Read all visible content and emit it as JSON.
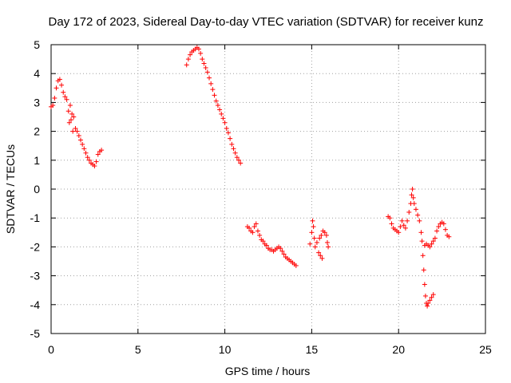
{
  "chart_data": {
    "type": "scatter",
    "title": "Day 172 of 2023, Sidereal Day-to-day VTEC variation (SDTVAR) for receiver kunz",
    "xlabel": "GPS time / hours",
    "ylabel": "SDTVAR / TECUs",
    "xlim": [
      0,
      25
    ],
    "ylim": [
      -5,
      5
    ],
    "xticks": [
      0,
      5,
      10,
      15,
      20,
      25
    ],
    "yticks": [
      -5,
      -4,
      -3,
      -2,
      -1,
      0,
      1,
      2,
      3,
      4,
      5
    ],
    "grid": true,
    "marker": "plus",
    "color": "#ff0000",
    "series": [
      {
        "name": "SDTVAR",
        "points": [
          [
            0.0,
            2.85
          ],
          [
            0.1,
            2.9
          ],
          [
            0.2,
            3.15
          ],
          [
            0.3,
            3.5
          ],
          [
            0.4,
            3.75
          ],
          [
            0.5,
            3.8
          ],
          [
            0.6,
            3.6
          ],
          [
            0.7,
            3.35
          ],
          [
            0.8,
            3.2
          ],
          [
            0.9,
            3.1
          ],
          [
            1.0,
            2.7
          ],
          [
            1.05,
            2.3
          ],
          [
            1.1,
            2.9
          ],
          [
            1.15,
            2.4
          ],
          [
            1.2,
            2.6
          ],
          [
            1.25,
            2.0
          ],
          [
            1.3,
            2.5
          ],
          [
            1.4,
            2.1
          ],
          [
            1.5,
            2.0
          ],
          [
            1.6,
            1.85
          ],
          [
            1.7,
            1.7
          ],
          [
            1.8,
            1.55
          ],
          [
            1.9,
            1.4
          ],
          [
            2.0,
            1.25
          ],
          [
            2.1,
            1.1
          ],
          [
            2.2,
            1.0
          ],
          [
            2.3,
            0.9
          ],
          [
            2.4,
            0.85
          ],
          [
            2.5,
            0.8
          ],
          [
            2.6,
            0.95
          ],
          [
            2.7,
            1.2
          ],
          [
            2.8,
            1.3
          ],
          [
            2.9,
            1.35
          ],
          [
            7.8,
            4.3
          ],
          [
            7.9,
            4.5
          ],
          [
            8.0,
            4.65
          ],
          [
            8.1,
            4.75
          ],
          [
            8.2,
            4.8
          ],
          [
            8.3,
            4.85
          ],
          [
            8.4,
            4.9
          ],
          [
            8.5,
            4.85
          ],
          [
            8.6,
            4.7
          ],
          [
            8.7,
            4.5
          ],
          [
            8.8,
            4.35
          ],
          [
            8.9,
            4.2
          ],
          [
            9.0,
            4.05
          ],
          [
            9.1,
            3.85
          ],
          [
            9.2,
            3.65
          ],
          [
            9.3,
            3.45
          ],
          [
            9.4,
            3.25
          ],
          [
            9.5,
            3.05
          ],
          [
            9.6,
            2.9
          ],
          [
            9.7,
            2.75
          ],
          [
            9.8,
            2.6
          ],
          [
            9.9,
            2.45
          ],
          [
            10.0,
            2.3
          ],
          [
            10.1,
            2.1
          ],
          [
            10.2,
            1.95
          ],
          [
            10.3,
            1.75
          ],
          [
            10.4,
            1.55
          ],
          [
            10.5,
            1.4
          ],
          [
            10.6,
            1.25
          ],
          [
            10.7,
            1.1
          ],
          [
            10.8,
            1.0
          ],
          [
            10.9,
            0.9
          ],
          [
            11.3,
            -1.3
          ],
          [
            11.4,
            -1.35
          ],
          [
            11.5,
            -1.45
          ],
          [
            11.6,
            -1.5
          ],
          [
            11.7,
            -1.3
          ],
          [
            11.8,
            -1.2
          ],
          [
            11.9,
            -1.45
          ],
          [
            12.0,
            -1.6
          ],
          [
            12.1,
            -1.75
          ],
          [
            12.2,
            -1.8
          ],
          [
            12.3,
            -1.9
          ],
          [
            12.4,
            -1.95
          ],
          [
            12.5,
            -2.05
          ],
          [
            12.6,
            -2.1
          ],
          [
            12.7,
            -2.1
          ],
          [
            12.8,
            -2.15
          ],
          [
            12.9,
            -2.1
          ],
          [
            13.0,
            -2.05
          ],
          [
            13.1,
            -2.0
          ],
          [
            13.2,
            -2.05
          ],
          [
            13.3,
            -2.15
          ],
          [
            13.4,
            -2.25
          ],
          [
            13.5,
            -2.35
          ],
          [
            13.6,
            -2.4
          ],
          [
            13.7,
            -2.45
          ],
          [
            13.8,
            -2.5
          ],
          [
            13.9,
            -2.55
          ],
          [
            14.0,
            -2.6
          ],
          [
            14.1,
            -2.65
          ],
          [
            14.9,
            -1.9
          ],
          [
            15.0,
            -1.5
          ],
          [
            15.05,
            -1.1
          ],
          [
            15.1,
            -1.3
          ],
          [
            15.15,
            -1.7
          ],
          [
            15.2,
            -2.0
          ],
          [
            15.3,
            -1.85
          ],
          [
            15.4,
            -2.2
          ],
          [
            15.5,
            -2.3
          ],
          [
            15.6,
            -2.4
          ],
          [
            15.45,
            -1.7
          ],
          [
            15.55,
            -1.6
          ],
          [
            15.65,
            -1.45
          ],
          [
            15.75,
            -1.5
          ],
          [
            15.85,
            -1.6
          ],
          [
            15.9,
            -1.85
          ],
          [
            15.95,
            -2.0
          ],
          [
            19.4,
            -0.95
          ],
          [
            19.5,
            -1.0
          ],
          [
            19.6,
            -1.2
          ],
          [
            19.7,
            -1.35
          ],
          [
            19.8,
            -1.4
          ],
          [
            19.9,
            -1.45
          ],
          [
            20.0,
            -1.5
          ],
          [
            20.1,
            -1.3
          ],
          [
            20.2,
            -1.1
          ],
          [
            20.3,
            -1.25
          ],
          [
            20.4,
            -1.35
          ],
          [
            20.5,
            -1.1
          ],
          [
            20.6,
            -0.8
          ],
          [
            20.7,
            -0.5
          ],
          [
            20.75,
            -0.2
          ],
          [
            20.8,
            0.0
          ],
          [
            20.85,
            -0.3
          ],
          [
            20.9,
            -0.5
          ],
          [
            21.0,
            -0.7
          ],
          [
            21.1,
            -0.9
          ],
          [
            21.2,
            -1.1
          ],
          [
            21.3,
            -1.5
          ],
          [
            21.35,
            -1.8
          ],
          [
            21.4,
            -2.3
          ],
          [
            21.45,
            -2.8
          ],
          [
            21.5,
            -3.3
          ],
          [
            21.55,
            -3.7
          ],
          [
            21.6,
            -3.95
          ],
          [
            21.65,
            -4.05
          ],
          [
            21.7,
            -3.95
          ],
          [
            21.8,
            -3.85
          ],
          [
            21.9,
            -3.75
          ],
          [
            22.0,
            -3.65
          ],
          [
            21.5,
            -1.95
          ],
          [
            21.6,
            -1.9
          ],
          [
            21.7,
            -1.95
          ],
          [
            21.8,
            -2.0
          ],
          [
            21.9,
            -1.9
          ],
          [
            22.0,
            -1.8
          ],
          [
            22.1,
            -1.7
          ],
          [
            22.2,
            -1.45
          ],
          [
            22.3,
            -1.3
          ],
          [
            22.4,
            -1.2
          ],
          [
            22.5,
            -1.15
          ],
          [
            22.6,
            -1.2
          ],
          [
            22.7,
            -1.4
          ],
          [
            22.8,
            -1.6
          ],
          [
            22.9,
            -1.65
          ]
        ]
      }
    ]
  }
}
